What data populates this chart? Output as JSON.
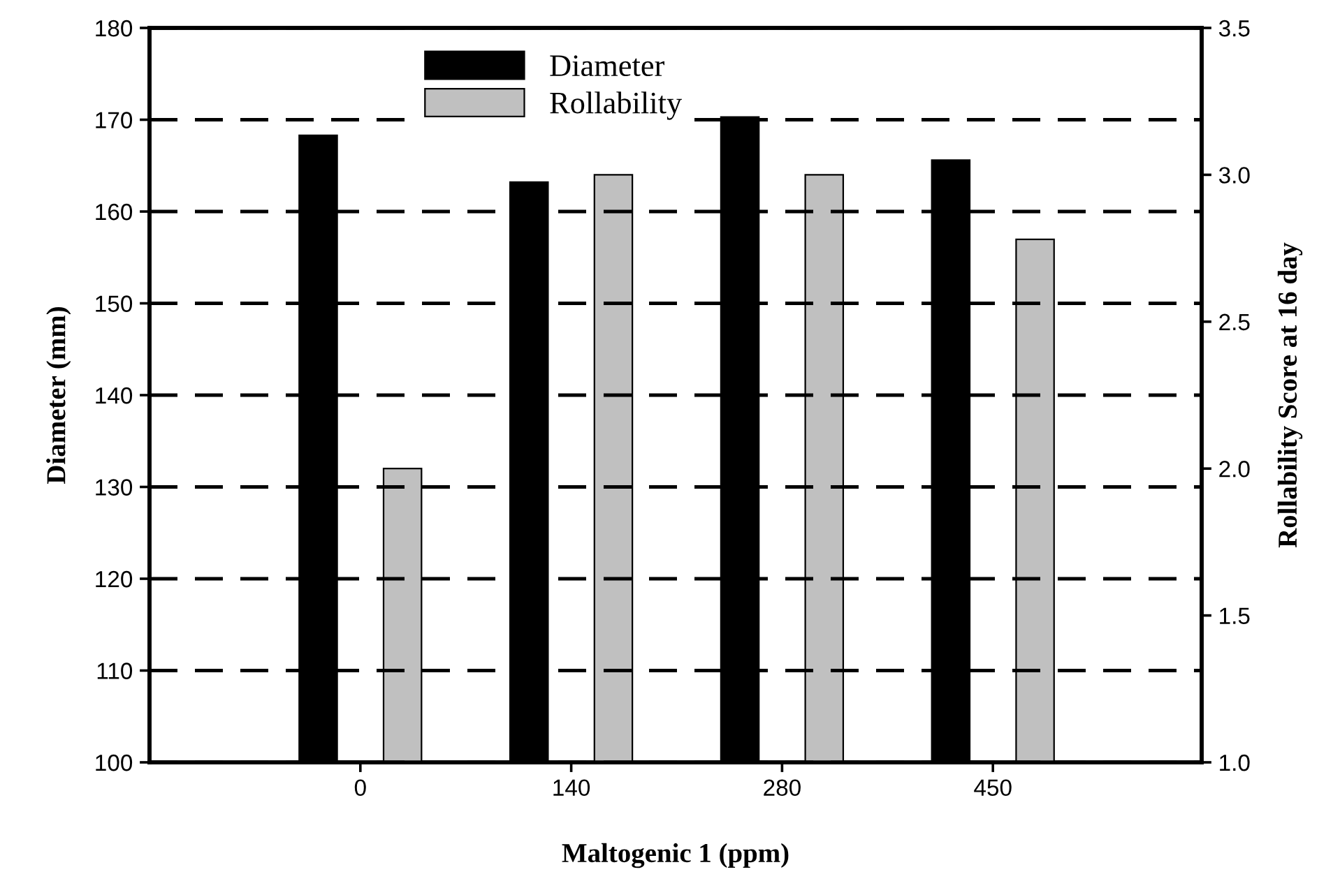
{
  "chart_data": {
    "type": "bar",
    "xlabel": "Maltogenic 1 (ppm)",
    "ylabel": "Diameter (mm)",
    "y2label": "Rollability Score at 16 day",
    "categories": [
      "0",
      "140",
      "280",
      "450"
    ],
    "series": [
      {
        "name": "Diameter",
        "color": "#000000",
        "values": [
          168.3,
          163.2,
          170.3,
          165.6
        ]
      },
      {
        "name": "Rollability",
        "color": "#c0c0c0",
        "values": [
          2.0,
          3.0,
          3.0,
          2.78
        ],
        "axis": "y2"
      }
    ],
    "ylim": [
      100,
      180
    ],
    "yticks": [
      100,
      110,
      120,
      130,
      140,
      150,
      160,
      170,
      180
    ],
    "y2lim": [
      1.0,
      3.5
    ],
    "y2ticks": [
      {
        "value": 1.0,
        "label": "1.0"
      },
      {
        "value": 1.5,
        "label": "1.5"
      },
      {
        "value": 2.0,
        "label": "2.0"
      },
      {
        "value": 2.5,
        "label": "2.5"
      },
      {
        "value": 3.0,
        "label": "3.0"
      },
      {
        "value": 3.5,
        "label": "3.5"
      }
    ],
    "grid": "y",
    "line_style": "dashed",
    "legend": "top"
  }
}
